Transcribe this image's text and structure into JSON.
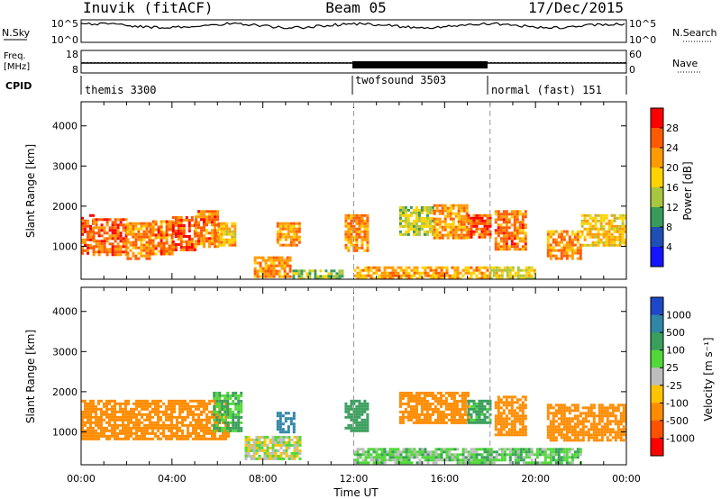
{
  "header": {
    "station": "Inuvik (fitACF)",
    "beam": "Beam 05",
    "date": "17/Dec/2015"
  },
  "side_labels": {
    "nsky": "N.Sky",
    "nsearch": "N.Search",
    "freq_line1": "Freq.",
    "freq_line2": "[MHz]",
    "nave": "Nave",
    "cpid": "CPID"
  },
  "panels": {
    "nsky_ticks_left": [
      "10^5",
      "10^0"
    ],
    "nsky_ticks_right": [
      "10^5",
      "10^0"
    ],
    "freq_ticks_left": [
      "18",
      "8"
    ],
    "nave_ticks_right": [
      "60",
      "0"
    ]
  },
  "cpid_segments": [
    {
      "label": "themis 3300",
      "start": 0,
      "end": 12
    },
    {
      "label": "twofsound 3503",
      "start": 12,
      "end": 18
    },
    {
      "label": "normal (fast) 151",
      "start": 18,
      "end": 24
    }
  ],
  "power_scale": {
    "title": "Power [dB]",
    "ticks": [
      "28",
      "24",
      "20",
      "16",
      "12",
      "8",
      "4"
    ],
    "colors": [
      "#ff0000",
      "#ff5a00",
      "#ff9a00",
      "#ffd200",
      "#a8c640",
      "#3a9a5a",
      "#1f4fb4",
      "#1414ff"
    ]
  },
  "velocity_scale": {
    "title": "Velocity [m s⁻¹]",
    "ticks": [
      "1000",
      "500",
      "100",
      "25",
      "-25",
      "-100",
      "-500",
      "-1000"
    ],
    "colors": [
      "#1f47c8",
      "#2f86a6",
      "#3a9e5c",
      "#52d83a",
      "#bdbdbd",
      "#ffc400",
      "#ff8c00",
      "#ff5200",
      "#ff0000"
    ]
  },
  "chart_data": {
    "type": "heatmap",
    "xlabel": "Time UT",
    "ylabel": "Slant Range [km]",
    "x_ticks": [
      "00:00",
      "04:00",
      "08:00",
      "12:00",
      "16:00",
      "20:00",
      "00:00"
    ],
    "x_range_hours": [
      0,
      24
    ],
    "y_ticks": [
      1000,
      2000,
      3000,
      4000
    ],
    "ylim": [
      180,
      4600
    ],
    "mode_changes_hours": [
      12,
      18
    ],
    "power_regions": [
      {
        "t0": 0,
        "t1": 0.5,
        "r0": 850,
        "r1": 1800,
        "power": 26
      },
      {
        "t0": 0.5,
        "t1": 2.0,
        "r0": 800,
        "r1": 1700,
        "power": 25
      },
      {
        "t0": 2.0,
        "t1": 3.0,
        "r0": 700,
        "r1": 1600,
        "power": 23
      },
      {
        "t0": 3.0,
        "t1": 4.0,
        "r0": 800,
        "r1": 1650,
        "power": 24
      },
      {
        "t0": 4.0,
        "t1": 5.0,
        "r0": 900,
        "r1": 1750,
        "power": 26
      },
      {
        "t0": 5.0,
        "t1": 6.0,
        "r0": 1000,
        "r1": 1900,
        "power": 24
      },
      {
        "t0": 6.0,
        "t1": 6.8,
        "r0": 1050,
        "r1": 1600,
        "power": 20
      },
      {
        "t0": 7.6,
        "t1": 9.2,
        "r0": 250,
        "r1": 750,
        "power": 23
      },
      {
        "t0": 8.6,
        "t1": 9.6,
        "r0": 1000,
        "r1": 1600,
        "power": 22
      },
      {
        "t0": 9.3,
        "t1": 11.5,
        "r0": 200,
        "r1": 420,
        "power": 14
      },
      {
        "t0": 11.6,
        "t1": 12.6,
        "r0": 900,
        "r1": 1800,
        "power": 23
      },
      {
        "t0": 12.0,
        "t1": 18.0,
        "r0": 200,
        "r1": 500,
        "power": 21
      },
      {
        "t0": 14.0,
        "t1": 15.5,
        "r0": 1300,
        "r1": 2000,
        "power": 15
      },
      {
        "t0": 15.5,
        "t1": 17.0,
        "r0": 1200,
        "r1": 2050,
        "power": 22
      },
      {
        "t0": 17.0,
        "t1": 18.0,
        "r0": 1200,
        "r1": 1800,
        "power": 26
      },
      {
        "t0": 18.0,
        "t1": 20.0,
        "r0": 200,
        "r1": 500,
        "power": 17
      },
      {
        "t0": 18.2,
        "t1": 19.6,
        "r0": 900,
        "r1": 1900,
        "power": 24
      },
      {
        "t0": 20.5,
        "t1": 22.0,
        "r0": 700,
        "r1": 1400,
        "power": 23
      },
      {
        "t0": 22.0,
        "t1": 24.0,
        "r0": 1000,
        "r1": 1800,
        "power": 19
      }
    ],
    "velocity_regions": [
      {
        "t0": 0,
        "t1": 6.5,
        "r0": 850,
        "r1": 1800,
        "velocity": -200
      },
      {
        "t0": 5.8,
        "t1": 7.0,
        "r0": 1000,
        "r1": 2000,
        "velocity": 100
      },
      {
        "t0": 7.2,
        "t1": 9.6,
        "r0": 300,
        "r1": 900,
        "velocity": 0
      },
      {
        "t0": 8.6,
        "t1": 9.4,
        "r0": 1000,
        "r1": 1500,
        "velocity": 800
      },
      {
        "t0": 11.6,
        "t1": 12.6,
        "r0": 1000,
        "r1": 1800,
        "velocity": 200
      },
      {
        "t0": 12.0,
        "t1": 18.0,
        "r0": 200,
        "r1": 600,
        "velocity": 60
      },
      {
        "t0": 14.0,
        "t1": 17.0,
        "r0": 1200,
        "r1": 2000,
        "velocity": -200
      },
      {
        "t0": 17.0,
        "t1": 18.0,
        "r0": 1200,
        "r1": 1800,
        "velocity": 150
      },
      {
        "t0": 18.0,
        "t1": 22.0,
        "r0": 200,
        "r1": 600,
        "velocity": 80
      },
      {
        "t0": 18.2,
        "t1": 19.6,
        "r0": 900,
        "r1": 1900,
        "velocity": -300
      },
      {
        "t0": 20.5,
        "t1": 24.0,
        "r0": 800,
        "r1": 1700,
        "velocity": -200
      }
    ]
  }
}
